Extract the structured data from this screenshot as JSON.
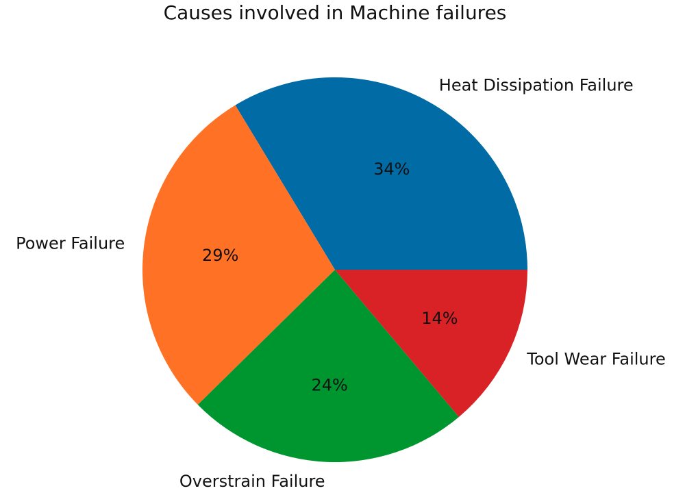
{
  "chart_data": {
    "type": "pie",
    "title": "Causes involved in Machine failures",
    "categories": [
      "Heat Dissipation Failure",
      "Power Failure",
      "Overstrain Failure",
      "Tool Wear Failure"
    ],
    "values": [
      34,
      29,
      24,
      14
    ],
    "percent_labels": [
      "34%",
      "29%",
      "24%",
      "14%"
    ],
    "colors": [
      "#006ba4",
      "#ff7125",
      "#00962f",
      "#d92226"
    ],
    "start_angle_deg": 0,
    "direction": "counterclockwise",
    "legend": "none"
  }
}
